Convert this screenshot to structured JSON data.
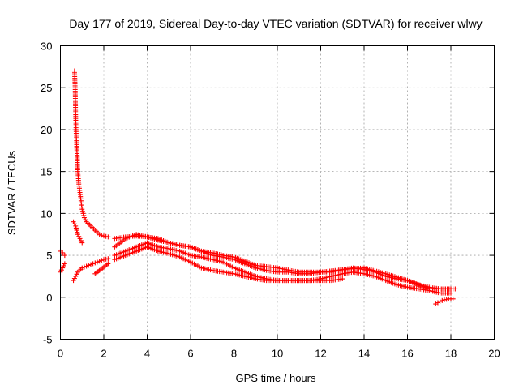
{
  "chart_data": {
    "type": "scatter",
    "title": "Day 177 of 2019, Sidereal Day-to-day VTEC variation (SDTVAR) for receiver wlwy",
    "xlabel": "GPS time / hours",
    "ylabel": "SDTVAR / TECUs",
    "xlim": [
      0,
      20
    ],
    "ylim": [
      -5,
      30
    ],
    "x_ticks": [
      "0",
      "2",
      "4",
      "6",
      "8",
      "10",
      "12",
      "14",
      "16",
      "18",
      "20"
    ],
    "y_ticks": [
      "-5",
      "0",
      "5",
      "10",
      "15",
      "20",
      "25",
      "30"
    ],
    "grid": true,
    "marker": "plus",
    "series": [
      {
        "name": "SDTVAR",
        "color": "#ff0000",
        "segments": [
          {
            "x": [
              0.0,
              0.1,
              0.2
            ],
            "y": [
              5.5,
              5.3,
              5.0
            ]
          },
          {
            "x": [
              0.0,
              0.1,
              0.2
            ],
            "y": [
              3.0,
              3.5,
              4.0
            ]
          },
          {
            "x": [
              0.65,
              0.68,
              0.7,
              0.72,
              0.75,
              0.78,
              0.8,
              0.85,
              0.9,
              0.95,
              1.0,
              1.1,
              1.2,
              1.4,
              1.6,
              1.8,
              2.0,
              2.2
            ],
            "y": [
              27.0,
              25.0,
              22.0,
              20.0,
              18.0,
              16.5,
              15.0,
              13.5,
              12.5,
              11.5,
              10.5,
              9.5,
              9.0,
              8.5,
              8.0,
              7.5,
              7.3,
              7.2
            ]
          },
          {
            "x": [
              0.6,
              0.7,
              0.8,
              0.9,
              1.0
            ],
            "y": [
              9.0,
              8.5,
              7.5,
              7.0,
              6.5
            ]
          },
          {
            "x": [
              0.6,
              0.7,
              0.8,
              1.0,
              1.2,
              1.5,
              1.8,
              2.0,
              2.2
            ],
            "y": [
              2.0,
              2.5,
              3.0,
              3.5,
              3.7,
              4.0,
              4.3,
              4.5,
              4.6
            ]
          },
          {
            "x": [
              1.6,
              1.8,
              2.0,
              2.2
            ],
            "y": [
              2.8,
              3.2,
              3.6,
              4.0
            ]
          },
          {
            "x": [
              2.5,
              3.0,
              3.5,
              4.0,
              4.5,
              5.0,
              5.5,
              6.0,
              6.5,
              7.0,
              7.5,
              8.0,
              8.5,
              9.0,
              9.5,
              10.0,
              10.5,
              11.0,
              11.5,
              12.0,
              12.5,
              13.0,
              13.5,
              14.0,
              14.5,
              15.0,
              15.5,
              16.0,
              16.5,
              17.0,
              17.5,
              18.0,
              18.2
            ],
            "y": [
              6.0,
              7.0,
              7.5,
              7.2,
              6.8,
              6.5,
              6.2,
              6.0,
              5.5,
              5.0,
              4.8,
              4.5,
              4.0,
              3.5,
              3.2,
              3.0,
              3.0,
              2.8,
              2.8,
              3.0,
              3.0,
              3.3,
              3.5,
              3.3,
              3.0,
              2.5,
              2.2,
              2.0,
              1.5,
              1.2,
              1.0,
              1.0,
              1.0
            ]
          },
          {
            "x": [
              2.5,
              3.0,
              3.5,
              4.0,
              4.5,
              5.0,
              5.5,
              6.0,
              6.5,
              7.0,
              7.5,
              8.0,
              8.5,
              9.0,
              9.5,
              10.0,
              10.5,
              11.0,
              11.5,
              12.0,
              12.5,
              13.0,
              13.5,
              14.0,
              14.5,
              15.0,
              15.5,
              16.0,
              16.5,
              17.0,
              17.5,
              18.0
            ],
            "y": [
              5.0,
              5.5,
              6.0,
              6.5,
              6.0,
              5.8,
              5.5,
              5.0,
              4.8,
              4.5,
              4.2,
              3.5,
              3.0,
              2.5,
              2.2,
              2.0,
              2.0,
              2.0,
              2.0,
              2.2,
              2.5,
              2.8,
              3.0,
              2.8,
              2.5,
              2.0,
              1.5,
              1.2,
              1.0,
              0.8,
              0.5,
              0.5
            ]
          },
          {
            "x": [
              2.5,
              3.0,
              3.5,
              4.0,
              4.5,
              5.0,
              5.5,
              6.0,
              6.5,
              7.0,
              7.5,
              8.0,
              8.5,
              9.0,
              9.5,
              10.0,
              10.5,
              11.0,
              11.5,
              12.0,
              12.5,
              13.0
            ],
            "y": [
              4.5,
              5.0,
              5.5,
              6.0,
              5.5,
              5.2,
              4.8,
              4.2,
              3.5,
              3.2,
              3.0,
              2.8,
              2.5,
              2.2,
              2.0,
              2.0,
              2.0,
              2.0,
              2.0,
              2.0,
              2.0,
              2.2
            ]
          },
          {
            "x": [
              2.5,
              3.0,
              3.5,
              4.0,
              4.5,
              5.0,
              5.5,
              6.0,
              6.5,
              7.0,
              7.5,
              8.0,
              9.0,
              10.0,
              11.0,
              12.0,
              13.0,
              14.0,
              15.0,
              16.0,
              17.0,
              18.0
            ],
            "y": [
              7.0,
              7.2,
              7.3,
              7.2,
              7.0,
              6.5,
              6.2,
              6.0,
              5.5,
              5.3,
              5.0,
              4.8,
              3.8,
              3.5,
              3.0,
              3.0,
              3.3,
              3.5,
              2.8,
              2.0,
              1.0,
              1.0
            ]
          },
          {
            "x": [
              17.3,
              17.5,
              17.7,
              17.9,
              18.1
            ],
            "y": [
              -0.8,
              -0.5,
              -0.3,
              -0.2,
              -0.2
            ]
          }
        ]
      }
    ]
  }
}
